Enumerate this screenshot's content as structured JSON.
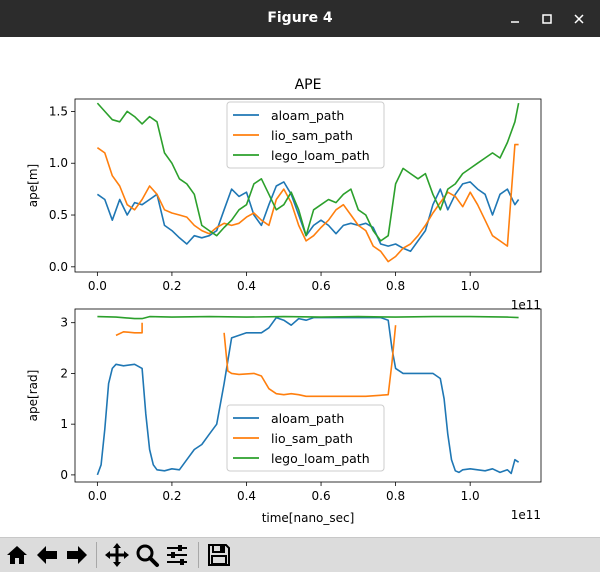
{
  "window": {
    "title": "Figure 4",
    "controls": [
      "minimize-icon",
      "maximize-icon",
      "close-icon"
    ]
  },
  "toolbar": {
    "buttons": [
      {
        "icon": "home-icon",
        "label": "Home"
      },
      {
        "icon": "arrow-left-icon",
        "label": "Back"
      },
      {
        "icon": "arrow-right-icon",
        "label": "Forward"
      },
      {
        "icon": "move-icon",
        "label": "Pan"
      },
      {
        "icon": "zoom-icon",
        "label": "Zoom"
      },
      {
        "icon": "sliders-icon",
        "label": "Configure subplots"
      },
      {
        "icon": "save-icon",
        "label": "Save"
      }
    ]
  },
  "colors": {
    "aloam": "#1f77b4",
    "lio_sam": "#ff7f0e",
    "lego_loam": "#2ca02c"
  },
  "chart_data": [
    {
      "type": "line",
      "title": "APE",
      "xlabel": "",
      "ylabel": "ape[m]",
      "x_offset_text": "1e11",
      "xlim": [
        -0.06,
        1.19
      ],
      "ylim": [
        -0.05,
        1.62
      ],
      "xticks": [
        0.0,
        0.2,
        0.4,
        0.6,
        0.8,
        1.0
      ],
      "xtick_labels": [
        "0.0",
        "0.2",
        "0.4",
        "0.6",
        "0.8",
        "1.0"
      ],
      "yticks": [
        0.0,
        0.5,
        1.0,
        1.5
      ],
      "ytick_labels": [
        "0.0",
        "0.5",
        "1.0",
        "1.5"
      ],
      "legend": {
        "position": "upper-center",
        "entries": [
          "aloam_path",
          "lio_sam_path",
          "lego_loam_path"
        ]
      },
      "series": [
        {
          "name": "aloam_path",
          "color": "#1f77b4",
          "x": [
            0.0,
            0.02,
            0.04,
            0.06,
            0.08,
            0.1,
            0.12,
            0.14,
            0.16,
            0.18,
            0.2,
            0.22,
            0.24,
            0.26,
            0.28,
            0.3,
            0.32,
            0.34,
            0.36,
            0.38,
            0.4,
            0.42,
            0.44,
            0.46,
            0.48,
            0.5,
            0.52,
            0.54,
            0.56,
            0.58,
            0.6,
            0.62,
            0.64,
            0.66,
            0.68,
            0.7,
            0.72,
            0.74,
            0.76,
            0.78,
            0.8,
            0.82,
            0.84,
            0.86,
            0.88,
            0.9,
            0.92,
            0.94,
            0.96,
            0.98,
            1.0,
            1.02,
            1.04,
            1.06,
            1.08,
            1.1,
            1.12,
            1.13
          ],
          "y": [
            0.7,
            0.65,
            0.45,
            0.65,
            0.5,
            0.62,
            0.6,
            0.65,
            0.7,
            0.4,
            0.35,
            0.28,
            0.22,
            0.3,
            0.28,
            0.3,
            0.35,
            0.55,
            0.75,
            0.68,
            0.72,
            0.5,
            0.4,
            0.6,
            0.78,
            0.82,
            0.7,
            0.5,
            0.3,
            0.4,
            0.45,
            0.4,
            0.32,
            0.4,
            0.42,
            0.4,
            0.42,
            0.38,
            0.22,
            0.2,
            0.22,
            0.18,
            0.15,
            0.25,
            0.35,
            0.6,
            0.75,
            0.55,
            0.7,
            0.8,
            0.82,
            0.75,
            0.7,
            0.5,
            0.7,
            0.75,
            0.6,
            0.65
          ]
        },
        {
          "name": "lio_sam_path",
          "color": "#ff7f0e",
          "x": [
            0.0,
            0.02,
            0.04,
            0.06,
            0.08,
            0.1,
            0.12,
            0.14,
            0.16,
            0.18,
            0.2,
            0.22,
            0.24,
            0.26,
            0.28,
            0.3,
            0.32,
            0.34,
            0.36,
            0.38,
            0.4,
            0.42,
            0.44,
            0.46,
            0.48,
            0.5,
            0.52,
            0.54,
            0.56,
            0.58,
            0.6,
            0.62,
            0.64,
            0.66,
            0.68,
            0.7,
            0.72,
            0.74,
            0.76,
            0.78,
            0.8,
            0.82,
            0.84,
            0.86,
            0.88,
            0.9,
            0.92,
            0.94,
            0.96,
            0.98,
            1.0,
            1.02,
            1.04,
            1.06,
            1.08,
            1.1,
            1.11,
            1.12,
            1.13
          ],
          "y": [
            1.15,
            1.1,
            0.88,
            0.78,
            0.6,
            0.55,
            0.65,
            0.78,
            0.7,
            0.55,
            0.52,
            0.5,
            0.48,
            0.4,
            0.35,
            0.32,
            0.38,
            0.42,
            0.4,
            0.42,
            0.48,
            0.52,
            0.45,
            0.4,
            0.65,
            0.75,
            0.62,
            0.4,
            0.25,
            0.3,
            0.38,
            0.45,
            0.55,
            0.6,
            0.5,
            0.4,
            0.35,
            0.2,
            0.15,
            0.05,
            0.1,
            0.18,
            0.22,
            0.3,
            0.4,
            0.52,
            0.62,
            0.72,
            0.68,
            0.58,
            0.72,
            0.6,
            0.45,
            0.3,
            0.25,
            0.2,
            0.7,
            1.18,
            1.18
          ]
        },
        {
          "name": "lego_loam_path",
          "color": "#2ca02c",
          "x": [
            0.0,
            0.02,
            0.04,
            0.06,
            0.08,
            0.1,
            0.12,
            0.14,
            0.16,
            0.18,
            0.2,
            0.22,
            0.24,
            0.26,
            0.28,
            0.3,
            0.32,
            0.34,
            0.36,
            0.38,
            0.4,
            0.42,
            0.44,
            0.46,
            0.48,
            0.5,
            0.52,
            0.54,
            0.56,
            0.58,
            0.6,
            0.62,
            0.64,
            0.66,
            0.68,
            0.7,
            0.72,
            0.74,
            0.76,
            0.78,
            0.8,
            0.82,
            0.84,
            0.86,
            0.88,
            0.9,
            0.92,
            0.94,
            0.96,
            0.98,
            1.0,
            1.02,
            1.04,
            1.06,
            1.08,
            1.1,
            1.12,
            1.13
          ],
          "y": [
            1.58,
            1.5,
            1.42,
            1.4,
            1.5,
            1.45,
            1.38,
            1.45,
            1.4,
            1.1,
            1.0,
            0.85,
            0.8,
            0.7,
            0.4,
            0.35,
            0.3,
            0.38,
            0.45,
            0.55,
            0.6,
            0.8,
            0.85,
            0.7,
            0.55,
            0.6,
            0.72,
            0.55,
            0.3,
            0.55,
            0.6,
            0.65,
            0.62,
            0.7,
            0.75,
            0.55,
            0.5,
            0.35,
            0.25,
            0.3,
            0.8,
            0.95,
            0.9,
            0.85,
            0.9,
            0.7,
            0.55,
            0.75,
            0.8,
            0.9,
            0.95,
            1.0,
            1.05,
            1.1,
            1.05,
            1.2,
            1.4,
            1.58
          ]
        }
      ]
    },
    {
      "type": "line",
      "title": "",
      "xlabel": "time[nano_sec]",
      "ylabel": "ape[rad]",
      "x_offset_text": "1e11",
      "xlim": [
        -0.06,
        1.19
      ],
      "ylim": [
        -0.14,
        3.27
      ],
      "xticks": [
        0.0,
        0.2,
        0.4,
        0.6,
        0.8,
        1.0
      ],
      "xtick_labels": [
        "0.0",
        "0.2",
        "0.4",
        "0.6",
        "0.8",
        "1.0"
      ],
      "yticks": [
        0,
        1,
        2,
        3
      ],
      "ytick_labels": [
        "0",
        "1",
        "2",
        "3"
      ],
      "legend": {
        "position": "lower-center",
        "entries": [
          "aloam_path",
          "lio_sam_path",
          "lego_loam_path"
        ]
      },
      "series": [
        {
          "name": "aloam_path",
          "color": "#1f77b4",
          "x": [
            0.0,
            0.01,
            0.02,
            0.03,
            0.04,
            0.05,
            0.07,
            0.1,
            0.12,
            0.13,
            0.14,
            0.15,
            0.16,
            0.18,
            0.2,
            0.22,
            0.24,
            0.26,
            0.28,
            0.3,
            0.32,
            0.34,
            0.36,
            0.4,
            0.44,
            0.46,
            0.48,
            0.5,
            0.52,
            0.54,
            0.56,
            0.58,
            0.6,
            0.64,
            0.7,
            0.76,
            0.78,
            0.79,
            0.8,
            0.82,
            0.86,
            0.9,
            0.92,
            0.93,
            0.94,
            0.95,
            0.96,
            0.97,
            0.98,
            1.0,
            1.02,
            1.04,
            1.06,
            1.08,
            1.1,
            1.11,
            1.12,
            1.13
          ],
          "y": [
            0.0,
            0.2,
            0.9,
            1.8,
            2.1,
            2.18,
            2.15,
            2.18,
            2.1,
            1.2,
            0.5,
            0.2,
            0.1,
            0.08,
            0.12,
            0.1,
            0.3,
            0.5,
            0.6,
            0.8,
            1.0,
            1.8,
            2.7,
            2.8,
            2.8,
            2.9,
            3.1,
            3.05,
            2.95,
            3.08,
            3.05,
            3.1,
            3.1,
            3.1,
            3.1,
            3.1,
            3.05,
            2.5,
            2.1,
            2.0,
            2.0,
            2.0,
            1.9,
            1.5,
            0.8,
            0.3,
            0.08,
            0.05,
            0.1,
            0.12,
            0.1,
            0.08,
            0.12,
            0.05,
            0.1,
            0.03,
            0.3,
            0.25
          ]
        },
        {
          "name": "lio_sam_path",
          "color": "#ff7f0e",
          "x": [
            0.05,
            0.07,
            0.1,
            0.12,
            0.12
          ],
          "y": [
            2.75,
            2.82,
            2.8,
            2.8,
            3.0
          ],
          "x2": [
            0.34,
            0.35,
            0.36,
            0.38,
            0.42,
            0.44,
            0.46,
            0.48,
            0.5,
            0.52,
            0.54,
            0.56,
            0.6,
            0.66,
            0.72,
            0.78,
            0.79,
            0.8
          ],
          "y2": [
            2.8,
            2.05,
            2.0,
            1.98,
            2.0,
            1.95,
            1.7,
            1.6,
            1.58,
            1.6,
            1.58,
            1.55,
            1.55,
            1.55,
            1.55,
            1.58,
            2.2,
            2.95
          ]
        },
        {
          "name": "lego_loam_path",
          "color": "#2ca02c",
          "x": [
            0.0,
            0.05,
            0.1,
            0.12,
            0.14,
            0.2,
            0.3,
            0.4,
            0.5,
            0.6,
            0.7,
            0.8,
            0.9,
            1.0,
            1.1,
            1.13
          ],
          "y": [
            3.12,
            3.11,
            3.08,
            3.08,
            3.12,
            3.11,
            3.12,
            3.11,
            3.12,
            3.11,
            3.12,
            3.11,
            3.12,
            3.12,
            3.11,
            3.1
          ]
        }
      ]
    }
  ]
}
